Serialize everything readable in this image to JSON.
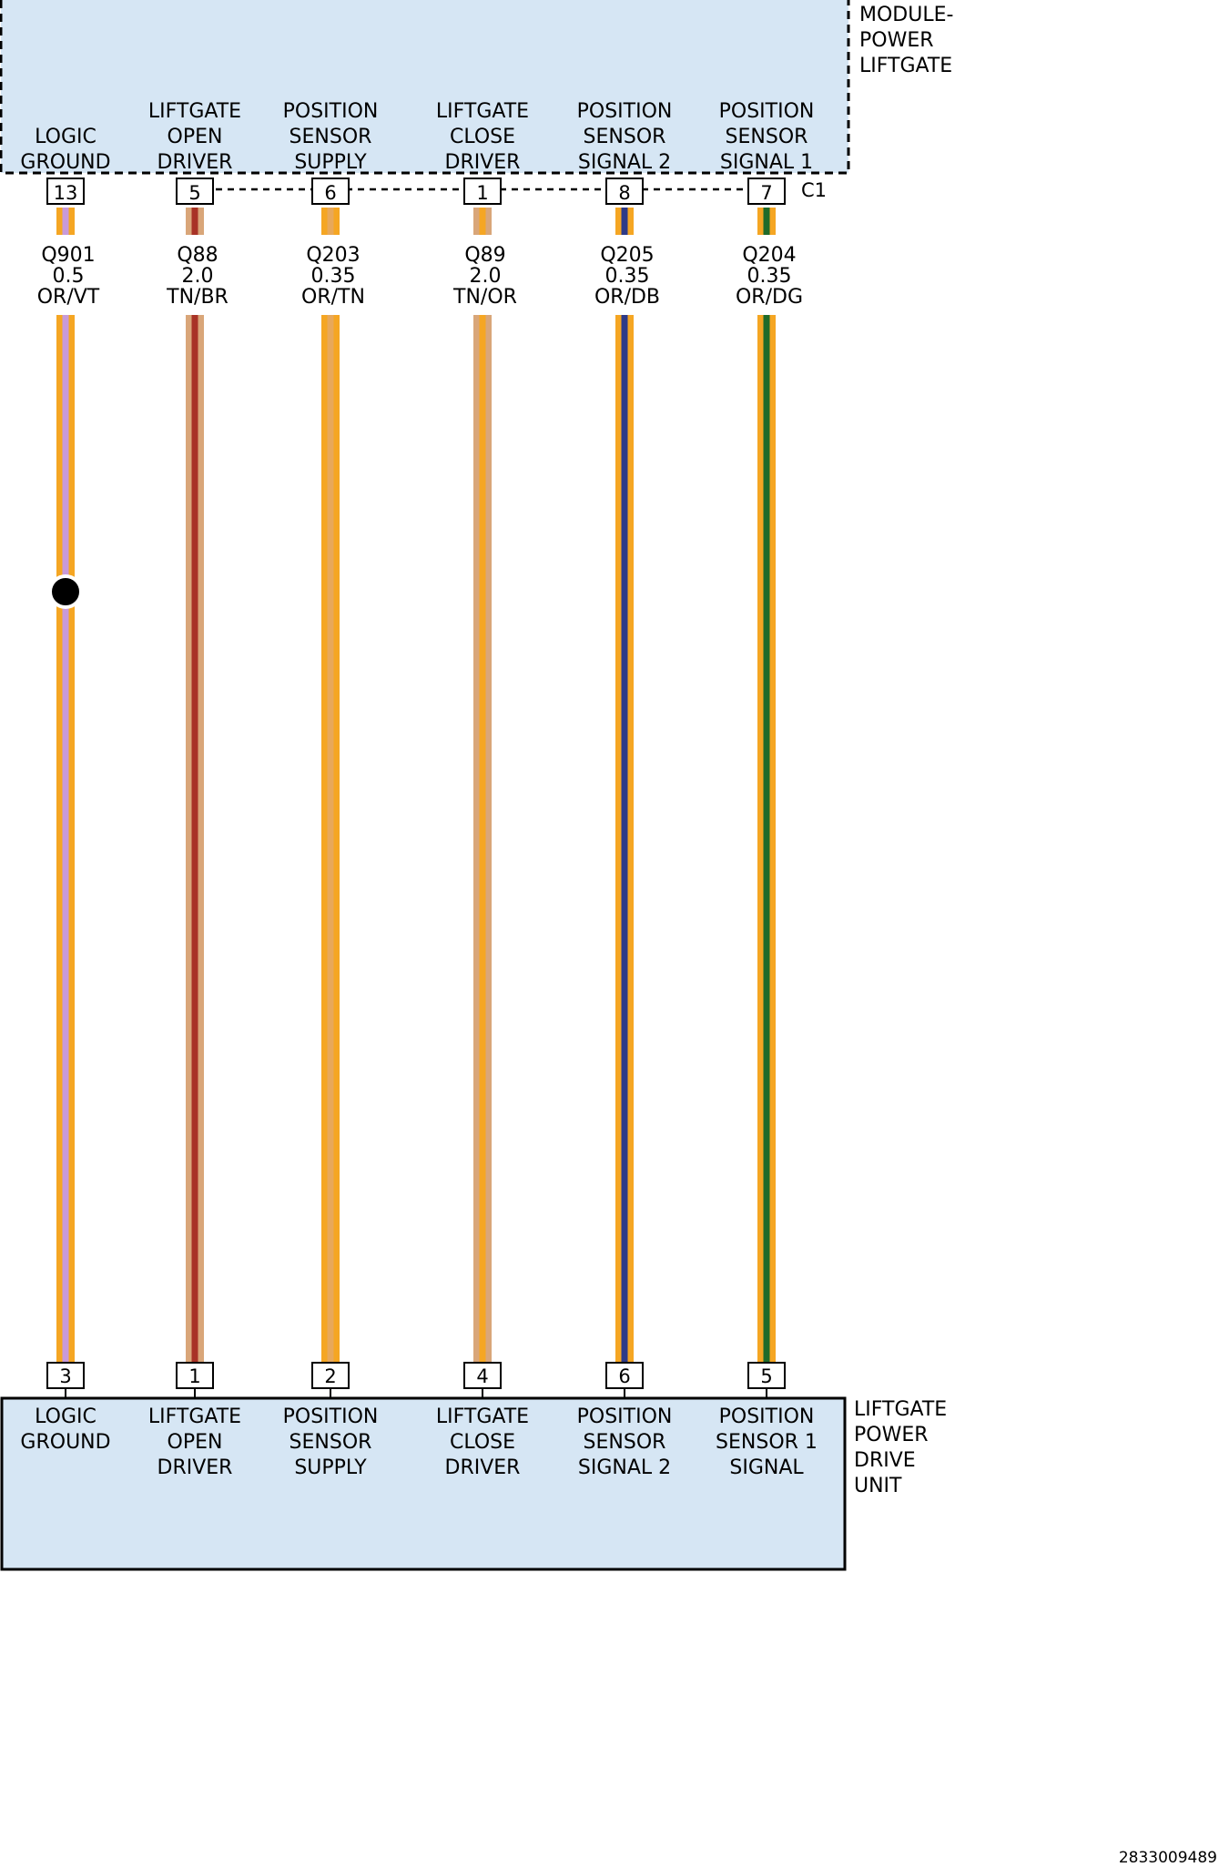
{
  "top_module": {
    "name_lines": [
      "MODULE-",
      "POWER",
      "LIFTGATE"
    ],
    "connector": "C1",
    "fill": "#d6e6f4"
  },
  "bottom_module": {
    "name_lines": [
      "LIFTGATE",
      "POWER",
      "DRIVE",
      "UNIT"
    ],
    "fill": "#d6e6f4"
  },
  "circuits": [
    {
      "top_label": [
        "LOGIC",
        "GROUND"
      ],
      "top_pin": "13",
      "circuit": "Q901",
      "gauge": "0.5",
      "color_code": "OR/VT",
      "base_color": "#f5a623",
      "stripe_color": "#c89ad9",
      "splice": true,
      "bottom_pin": "3",
      "bottom_label": [
        "LOGIC",
        "GROUND"
      ]
    },
    {
      "top_label": [
        "LIFTGATE",
        "OPEN",
        "DRIVER"
      ],
      "top_pin": "5",
      "circuit": "Q88",
      "gauge": "2.0",
      "color_code": "TN/BR",
      "base_color": "#d9a679",
      "stripe_color": "#a83226",
      "splice": false,
      "bottom_pin": "1",
      "bottom_label": [
        "LIFTGATE",
        "OPEN",
        "DRIVER"
      ]
    },
    {
      "top_label": [
        "POSITION",
        "SENSOR",
        "SUPPLY"
      ],
      "top_pin": "6",
      "circuit": "Q203",
      "gauge": "0.35",
      "color_code": "OR/TN",
      "base_color": "#f5a623",
      "stripe_color": "#e8a85a",
      "splice": false,
      "bottom_pin": "2",
      "bottom_label": [
        "POSITION",
        "SENSOR",
        "SUPPLY"
      ]
    },
    {
      "top_label": [
        "LIFTGATE",
        "CLOSE",
        "DRIVER"
      ],
      "top_pin": "1",
      "circuit": "Q89",
      "gauge": "2.0",
      "color_code": "TN/OR",
      "base_color": "#d9a679",
      "stripe_color": "#f5a623",
      "splice": false,
      "bottom_pin": "4",
      "bottom_label": [
        "LIFTGATE",
        "CLOSE",
        "DRIVER"
      ]
    },
    {
      "top_label": [
        "POSITION",
        "SENSOR",
        "SIGNAL 2"
      ],
      "top_pin": "8",
      "circuit": "Q205",
      "gauge": "0.35",
      "color_code": "OR/DB",
      "base_color": "#f5a623",
      "stripe_color": "#2e3a87",
      "splice": false,
      "bottom_pin": "6",
      "bottom_label": [
        "POSITION",
        "SENSOR",
        "SIGNAL 2"
      ]
    },
    {
      "top_label": [
        "POSITION",
        "SENSOR",
        "SIGNAL 1"
      ],
      "top_pin": "7",
      "circuit": "Q204",
      "gauge": "0.35",
      "color_code": "OR/DG",
      "base_color": "#f5a623",
      "stripe_color": "#1f6b2a",
      "splice": false,
      "bottom_pin": "5",
      "bottom_label": [
        "POSITION",
        "SENSOR 1",
        "SIGNAL"
      ]
    }
  ],
  "footer_id": "2833009489"
}
